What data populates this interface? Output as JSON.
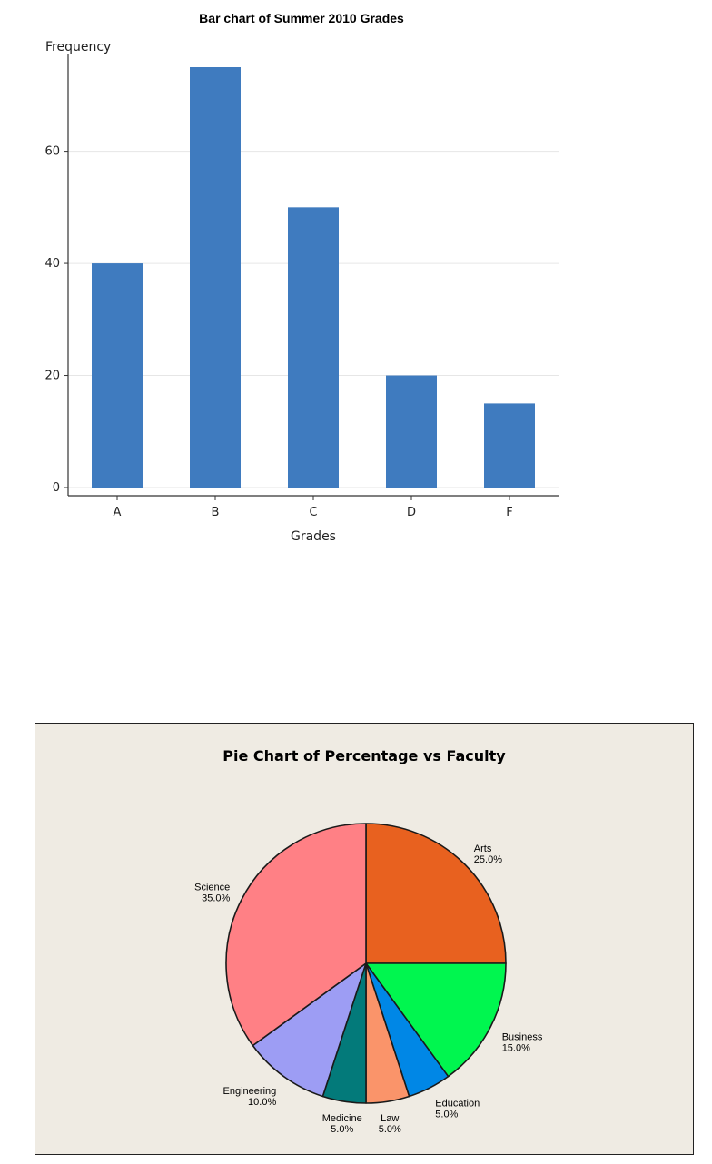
{
  "chart_data": [
    {
      "type": "bar",
      "title": "Bar chart of Summer 2010 Grades",
      "xlabel": "Grades",
      "ylabel": "Frequency",
      "categories": [
        "A",
        "B",
        "C",
        "D",
        "F"
      ],
      "values": [
        40,
        75,
        50,
        20,
        15
      ],
      "ylim": [
        0,
        75
      ],
      "yticks": [
        0,
        20,
        40,
        60
      ],
      "grid": true,
      "colors": {
        "bar": "#3f7bbf",
        "grid": "#e6e6e6",
        "axis": "#333333"
      }
    },
    {
      "type": "pie",
      "title": "Pie Chart of Percentage vs Faculty",
      "background": "#efebe3",
      "slices": [
        {
          "label": "Arts",
          "value": 25,
          "pct_text": "25.0%",
          "color": "#e8611f"
        },
        {
          "label": "Business",
          "value": 15,
          "pct_text": "15.0%",
          "color": "#00f64f"
        },
        {
          "label": "Education",
          "value": 5,
          "pct_text": "5.0%",
          "color": "#0087e6"
        },
        {
          "label": "Law",
          "value": 5,
          "pct_text": "5.0%",
          "color": "#fa946a"
        },
        {
          "label": "Medicine",
          "value": 5,
          "pct_text": "5.0%",
          "color": "#037a7a"
        },
        {
          "label": "Engineering",
          "value": 10,
          "pct_text": "10.0%",
          "color": "#9d9df4"
        },
        {
          "label": "Science",
          "value": 35,
          "pct_text": "35.0%",
          "color": "#ff8085"
        }
      ]
    }
  ]
}
